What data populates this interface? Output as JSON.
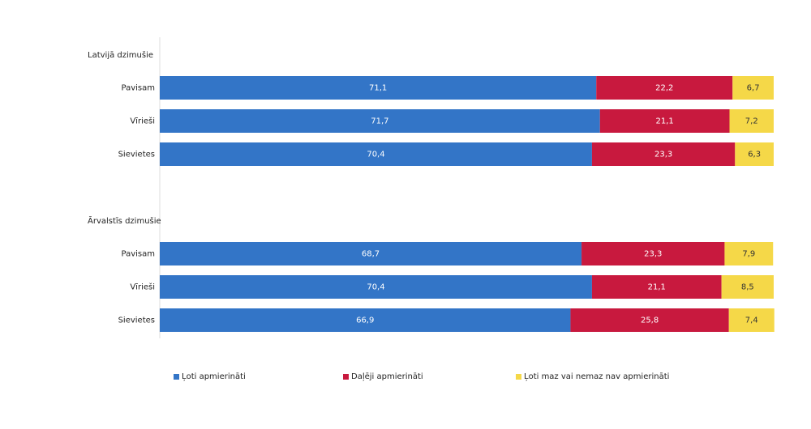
{
  "chart_data": {
    "type": "bar",
    "orientation": "horizontal",
    "stacked": true,
    "grid": false,
    "legend_position": "bottom",
    "xlim": [
      0,
      100
    ],
    "groups": [
      {
        "label": "Latvijā dzimušie",
        "rows": [
          {
            "label": "Pavisam",
            "values": [
              71.1,
              22.2,
              6.7
            ],
            "value_labels": [
              "71,1",
              "22,2",
              "6,7"
            ]
          },
          {
            "label": "Vīrieši",
            "values": [
              71.7,
              21.1,
              7.2
            ],
            "value_labels": [
              "71,7",
              "21,1",
              "7,2"
            ]
          },
          {
            "label": "Sievietes",
            "values": [
              70.4,
              23.3,
              6.3
            ],
            "value_labels": [
              "70,4",
              "23,3",
              "6,3"
            ]
          }
        ]
      },
      {
        "label": "Ārvalstīs dzimušie",
        "rows": [
          {
            "label": "Pavisam",
            "values": [
              68.7,
              23.3,
              7.9
            ],
            "value_labels": [
              "68,7",
              "23,3",
              "7,9"
            ]
          },
          {
            "label": "Vīrieši",
            "values": [
              70.4,
              21.1,
              8.5
            ],
            "value_labels": [
              "70,4",
              "21,1",
              "8,5"
            ]
          },
          {
            "label": "Sievietes",
            "values": [
              66.9,
              25.8,
              7.4
            ],
            "value_labels": [
              "66,9",
              "25,8",
              "7,4"
            ]
          }
        ]
      }
    ],
    "series": [
      {
        "name": "Ļoti apmierināti",
        "color": "#3375c7"
      },
      {
        "name": "Daļēji apmierināti",
        "color": "#c8193e"
      },
      {
        "name": "Ļoti maz vai nemaz nav apmierināti",
        "color": "#f5d848"
      }
    ]
  }
}
